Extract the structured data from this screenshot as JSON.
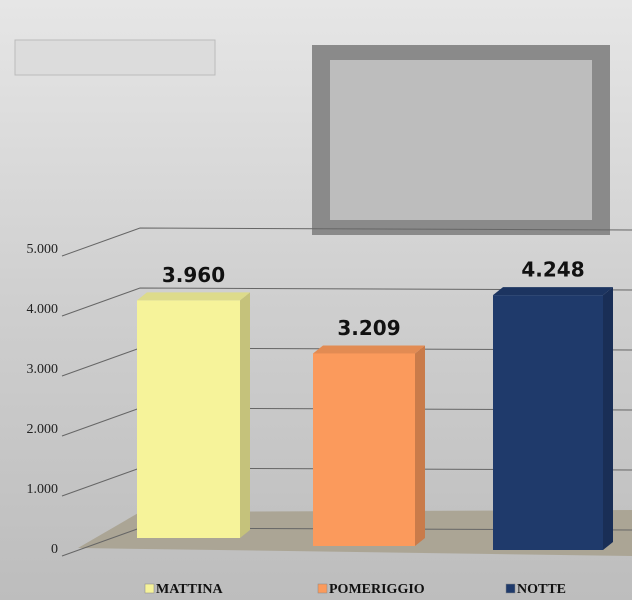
{
  "chart_data": {
    "type": "bar3d",
    "categories": [
      "MATTINA",
      "POMERIGGIO",
      "NOTTE"
    ],
    "values": [
      3960,
      3209,
      4248
    ],
    "value_labels": [
      "3.960",
      "3.209",
      "4.248"
    ],
    "colors": [
      "#f6f39a",
      "#fb9a5c",
      "#1f3a6b"
    ],
    "ylim": [
      0,
      5000
    ],
    "yticks": [
      0,
      {
        "value": 1000,
        "label": "1.000"
      },
      {
        "value": 2000,
        "label": "2.000"
      },
      {
        "value": 3000,
        "label": "3.000"
      },
      {
        "value": 4000,
        "label": "4.000"
      },
      {
        "value": 5000,
        "label": "5.000"
      }
    ],
    "grid": true
  }
}
